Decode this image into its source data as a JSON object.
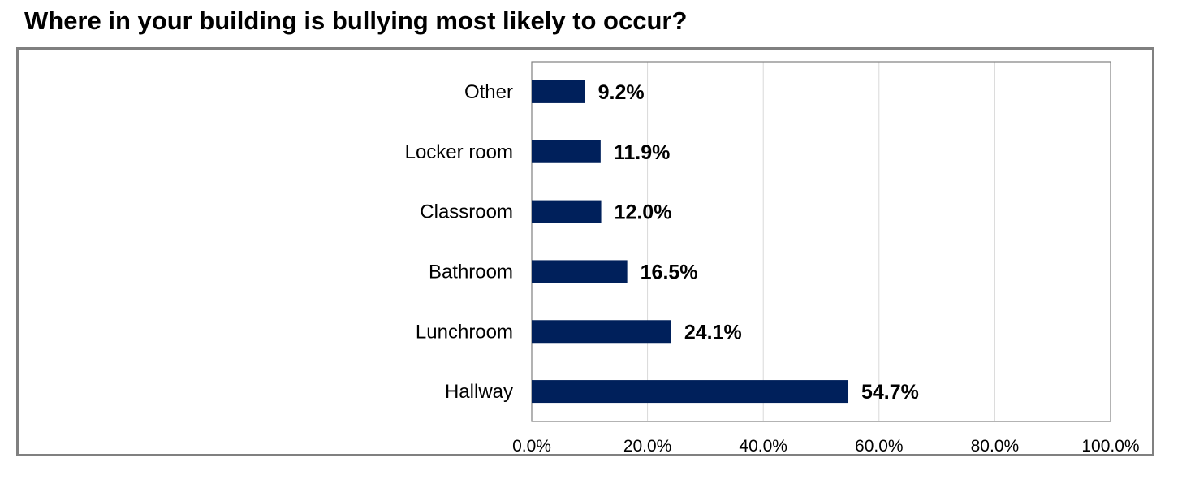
{
  "chart_data": {
    "type": "bar",
    "orientation": "horizontal",
    "title": "Where in your building is bullying most likely to occur?",
    "categories": [
      "Other",
      "Locker room",
      "Classroom",
      "Bathroom",
      "Lunchroom",
      "Hallway"
    ],
    "values": [
      9.2,
      11.9,
      12.0,
      16.5,
      24.1,
      54.7
    ],
    "value_labels": [
      "9.2%",
      "11.9%",
      "12.0%",
      "16.5%",
      "24.1%",
      "54.7%"
    ],
    "xlim": [
      0,
      100
    ],
    "xticks": [
      0,
      20,
      40,
      60,
      80,
      100
    ],
    "xtick_labels": [
      "0.0%",
      "20.0%",
      "40.0%",
      "60.0%",
      "80.0%",
      "100.0%"
    ],
    "grid": true,
    "bar_color": "#00205b",
    "grid_color": "#d9d9d9"
  }
}
